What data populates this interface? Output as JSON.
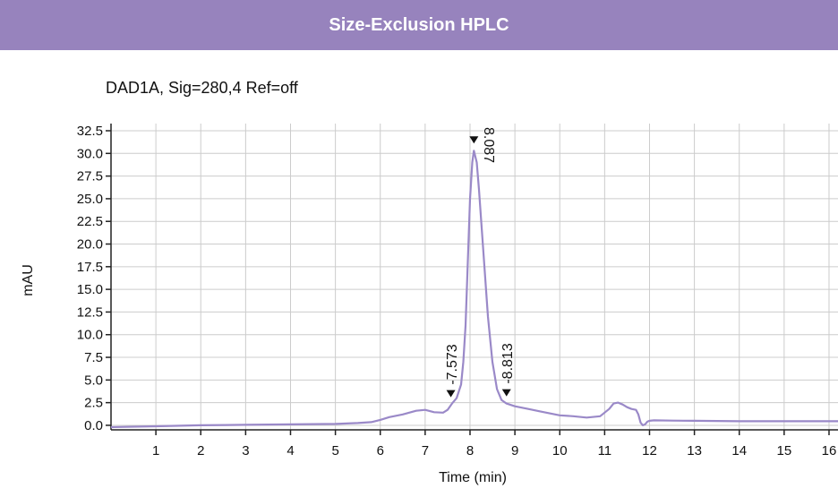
{
  "header": {
    "title": "Size-Exclusion HPLC"
  },
  "colors": {
    "banner": "#9783bd",
    "trace": "#9a89c8",
    "grid": "#cccccc",
    "axis": "#222222"
  },
  "chart_data": {
    "type": "line",
    "subtitle": "DAD1A, Sig=280,4  Ref=off",
    "xlabel": "Time (min)",
    "ylabel": "mAU",
    "xlim": [
      0,
      16.2
    ],
    "ylim": [
      -0.5,
      32.5
    ],
    "grid": true,
    "x_ticks": [
      1,
      2,
      3,
      4,
      5,
      6,
      7,
      8,
      9,
      10,
      11,
      12,
      13,
      14,
      15,
      16
    ],
    "y_ticks": [
      0.0,
      2.5,
      5.0,
      7.5,
      10.0,
      12.5,
      15.0,
      17.5,
      20.0,
      22.5,
      25.0,
      27.5,
      30.0,
      32.5
    ],
    "y_tick_labels": [
      "0.0",
      "2.5",
      "5.0",
      "7.5",
      "10.0",
      "12.5",
      "15.0",
      "17.5",
      "20.0",
      "22.5",
      "25.0",
      "27.5",
      "30.0",
      "32.5"
    ],
    "series": [
      {
        "x": [
          0,
          1,
          2,
          3,
          4,
          5,
          5.5,
          5.8,
          6.0,
          6.2,
          6.5,
          6.8,
          7.0,
          7.2,
          7.4,
          7.5,
          7.6,
          7.7,
          7.8,
          7.85,
          7.9,
          7.95,
          8.0,
          8.05,
          8.087,
          8.15,
          8.2,
          8.3,
          8.4,
          8.5,
          8.6,
          8.7,
          8.813,
          9.0,
          9.3,
          9.6,
          10.0,
          10.3,
          10.6,
          10.9,
          11.1,
          11.2,
          11.3,
          11.4,
          11.5,
          11.6,
          11.7,
          11.75,
          11.8,
          11.85,
          11.9,
          11.95,
          12.0,
          12.1,
          12.5,
          13,
          14,
          15,
          16.2
        ],
        "y": [
          -0.2,
          -0.1,
          0.0,
          0.05,
          0.1,
          0.15,
          0.25,
          0.35,
          0.6,
          0.9,
          1.2,
          1.6,
          1.7,
          1.45,
          1.4,
          1.7,
          2.4,
          3.0,
          4.5,
          7.0,
          11.0,
          18.0,
          25.0,
          29.0,
          30.3,
          29.0,
          26.0,
          19.0,
          12.0,
          7.0,
          4.0,
          2.8,
          2.4,
          2.1,
          1.8,
          1.5,
          1.1,
          1.0,
          0.85,
          1.0,
          1.8,
          2.4,
          2.5,
          2.3,
          2.0,
          1.8,
          1.7,
          1.2,
          0.3,
          0.0,
          0.1,
          0.4,
          0.5,
          0.55,
          0.52,
          0.5,
          0.45,
          0.45,
          0.45
        ]
      }
    ],
    "peaks": [
      {
        "x": 8.087,
        "y": 30.3,
        "label": "8.087"
      },
      {
        "x": 7.573,
        "y": 2.3,
        "label": "-7.573"
      },
      {
        "x": 8.813,
        "y": 2.4,
        "label": "-8.813"
      }
    ]
  }
}
